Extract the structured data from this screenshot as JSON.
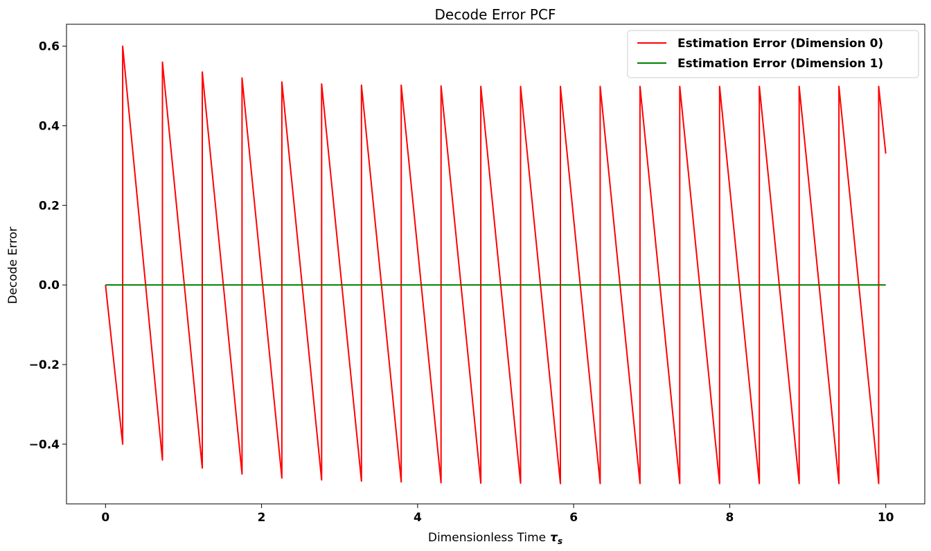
{
  "chart_data": {
    "type": "line",
    "title": "Decode Error PCF",
    "xlabel": "Dimensionless Time",
    "xlabel_symbol": "τ",
    "xlabel_subscript": "s",
    "ylabel": "Decode Error",
    "xlim": [
      -0.5,
      10.5
    ],
    "ylim": [
      -0.55,
      0.655
    ],
    "xticks": [
      0,
      2,
      4,
      6,
      8,
      10
    ],
    "xtick_labels": [
      "0",
      "2",
      "4",
      "6",
      "8",
      "10"
    ],
    "yticks": [
      -0.4,
      -0.2,
      0.0,
      0.2,
      0.4,
      0.6
    ],
    "ytick_labels": [
      "−0.4",
      "−0.2",
      "0.0",
      "0.2",
      "0.4",
      "0.6"
    ],
    "grid": false,
    "legend_position": "top-right",
    "series": [
      {
        "name": "Estimation Error (Dimension 0)",
        "color": "#ff0000",
        "x": [
          0.0,
          0.22,
          0.22,
          0.73,
          0.73,
          1.24,
          1.24,
          1.75,
          1.75,
          2.26,
          2.26,
          2.77,
          2.77,
          3.28,
          3.28,
          3.79,
          3.79,
          4.3,
          4.3,
          4.81,
          4.81,
          5.32,
          5.32,
          5.83,
          5.83,
          6.34,
          6.34,
          6.85,
          6.85,
          7.36,
          7.36,
          7.87,
          7.87,
          8.38,
          8.38,
          8.89,
          8.89,
          9.4,
          9.4,
          9.91,
          9.91,
          10.0
        ],
        "y": [
          0.0,
          -0.4,
          0.6,
          -0.44,
          0.56,
          -0.46,
          0.535,
          -0.475,
          0.52,
          -0.485,
          0.51,
          -0.49,
          0.505,
          -0.493,
          0.502,
          -0.495,
          0.502,
          -0.497,
          0.5,
          -0.498,
          0.499,
          -0.498,
          0.499,
          -0.499,
          0.499,
          -0.499,
          0.499,
          -0.499,
          0.499,
          -0.499,
          0.499,
          -0.499,
          0.499,
          -0.499,
          0.499,
          -0.499,
          0.499,
          -0.499,
          0.499,
          -0.499,
          0.499,
          0.33
        ]
      },
      {
        "name": "Estimation Error (Dimension 1)",
        "color": "#008000",
        "x": [
          0.0,
          10.0
        ],
        "y": [
          0.0,
          0.0
        ]
      }
    ]
  }
}
